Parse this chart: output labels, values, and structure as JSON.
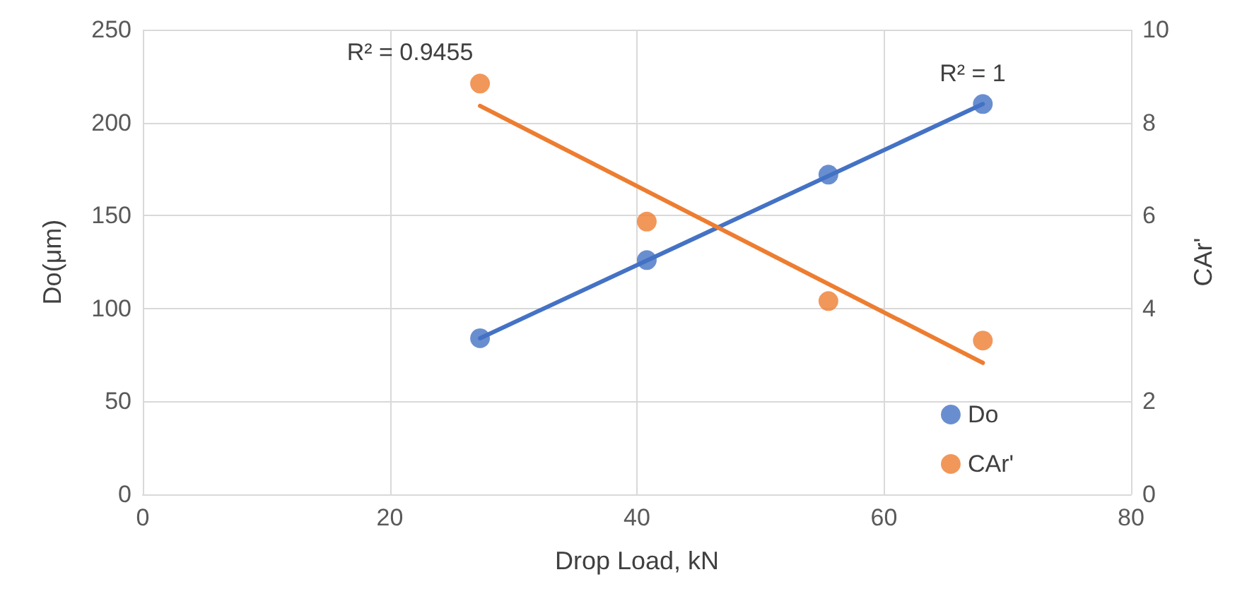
{
  "chart_data": {
    "type": "scatter",
    "xlabel": "Drop Load, kN",
    "ylabel": "Do(μm)",
    "y2label": "CAr'",
    "xlim": [
      0,
      80
    ],
    "xticks": [
      0,
      20,
      40,
      60,
      80
    ],
    "ylim": [
      0,
      250
    ],
    "yticks": [
      0,
      50,
      100,
      150,
      200,
      250
    ],
    "y2lim": [
      0,
      10
    ],
    "y2ticks": [
      0,
      2,
      4,
      6,
      8,
      10
    ],
    "grid": true,
    "legend": "bottom right",
    "marker": "circle",
    "series": [
      {
        "name": "Do",
        "color": "#4472c4",
        "x": [
          27.3,
          40.8,
          55.5,
          68.0
        ],
        "values": [
          84,
          126,
          172,
          210
        ]
      },
      {
        "name": "CAr'",
        "color": "#ed7d31",
        "axis": "y2",
        "x": [
          27.3,
          40.8,
          55.5,
          68.0
        ],
        "values": [
          8.84,
          5.87,
          4.16,
          3.31
        ]
      },
      {
        "type": "line",
        "color": "#4472c4",
        "marker": "none",
        "line_style": "solid",
        "x": [
          27.3,
          68.0
        ],
        "values": [
          84,
          210
        ]
      },
      {
        "type": "line",
        "color": "#ed7d31",
        "axis": "y2",
        "marker": "none",
        "line_style": "solid",
        "x": [
          27.3,
          68.0
        ],
        "values": [
          8.36,
          2.83
        ]
      }
    ],
    "annotations": [
      "R² = 0.9455",
      "R² = 1"
    ]
  }
}
